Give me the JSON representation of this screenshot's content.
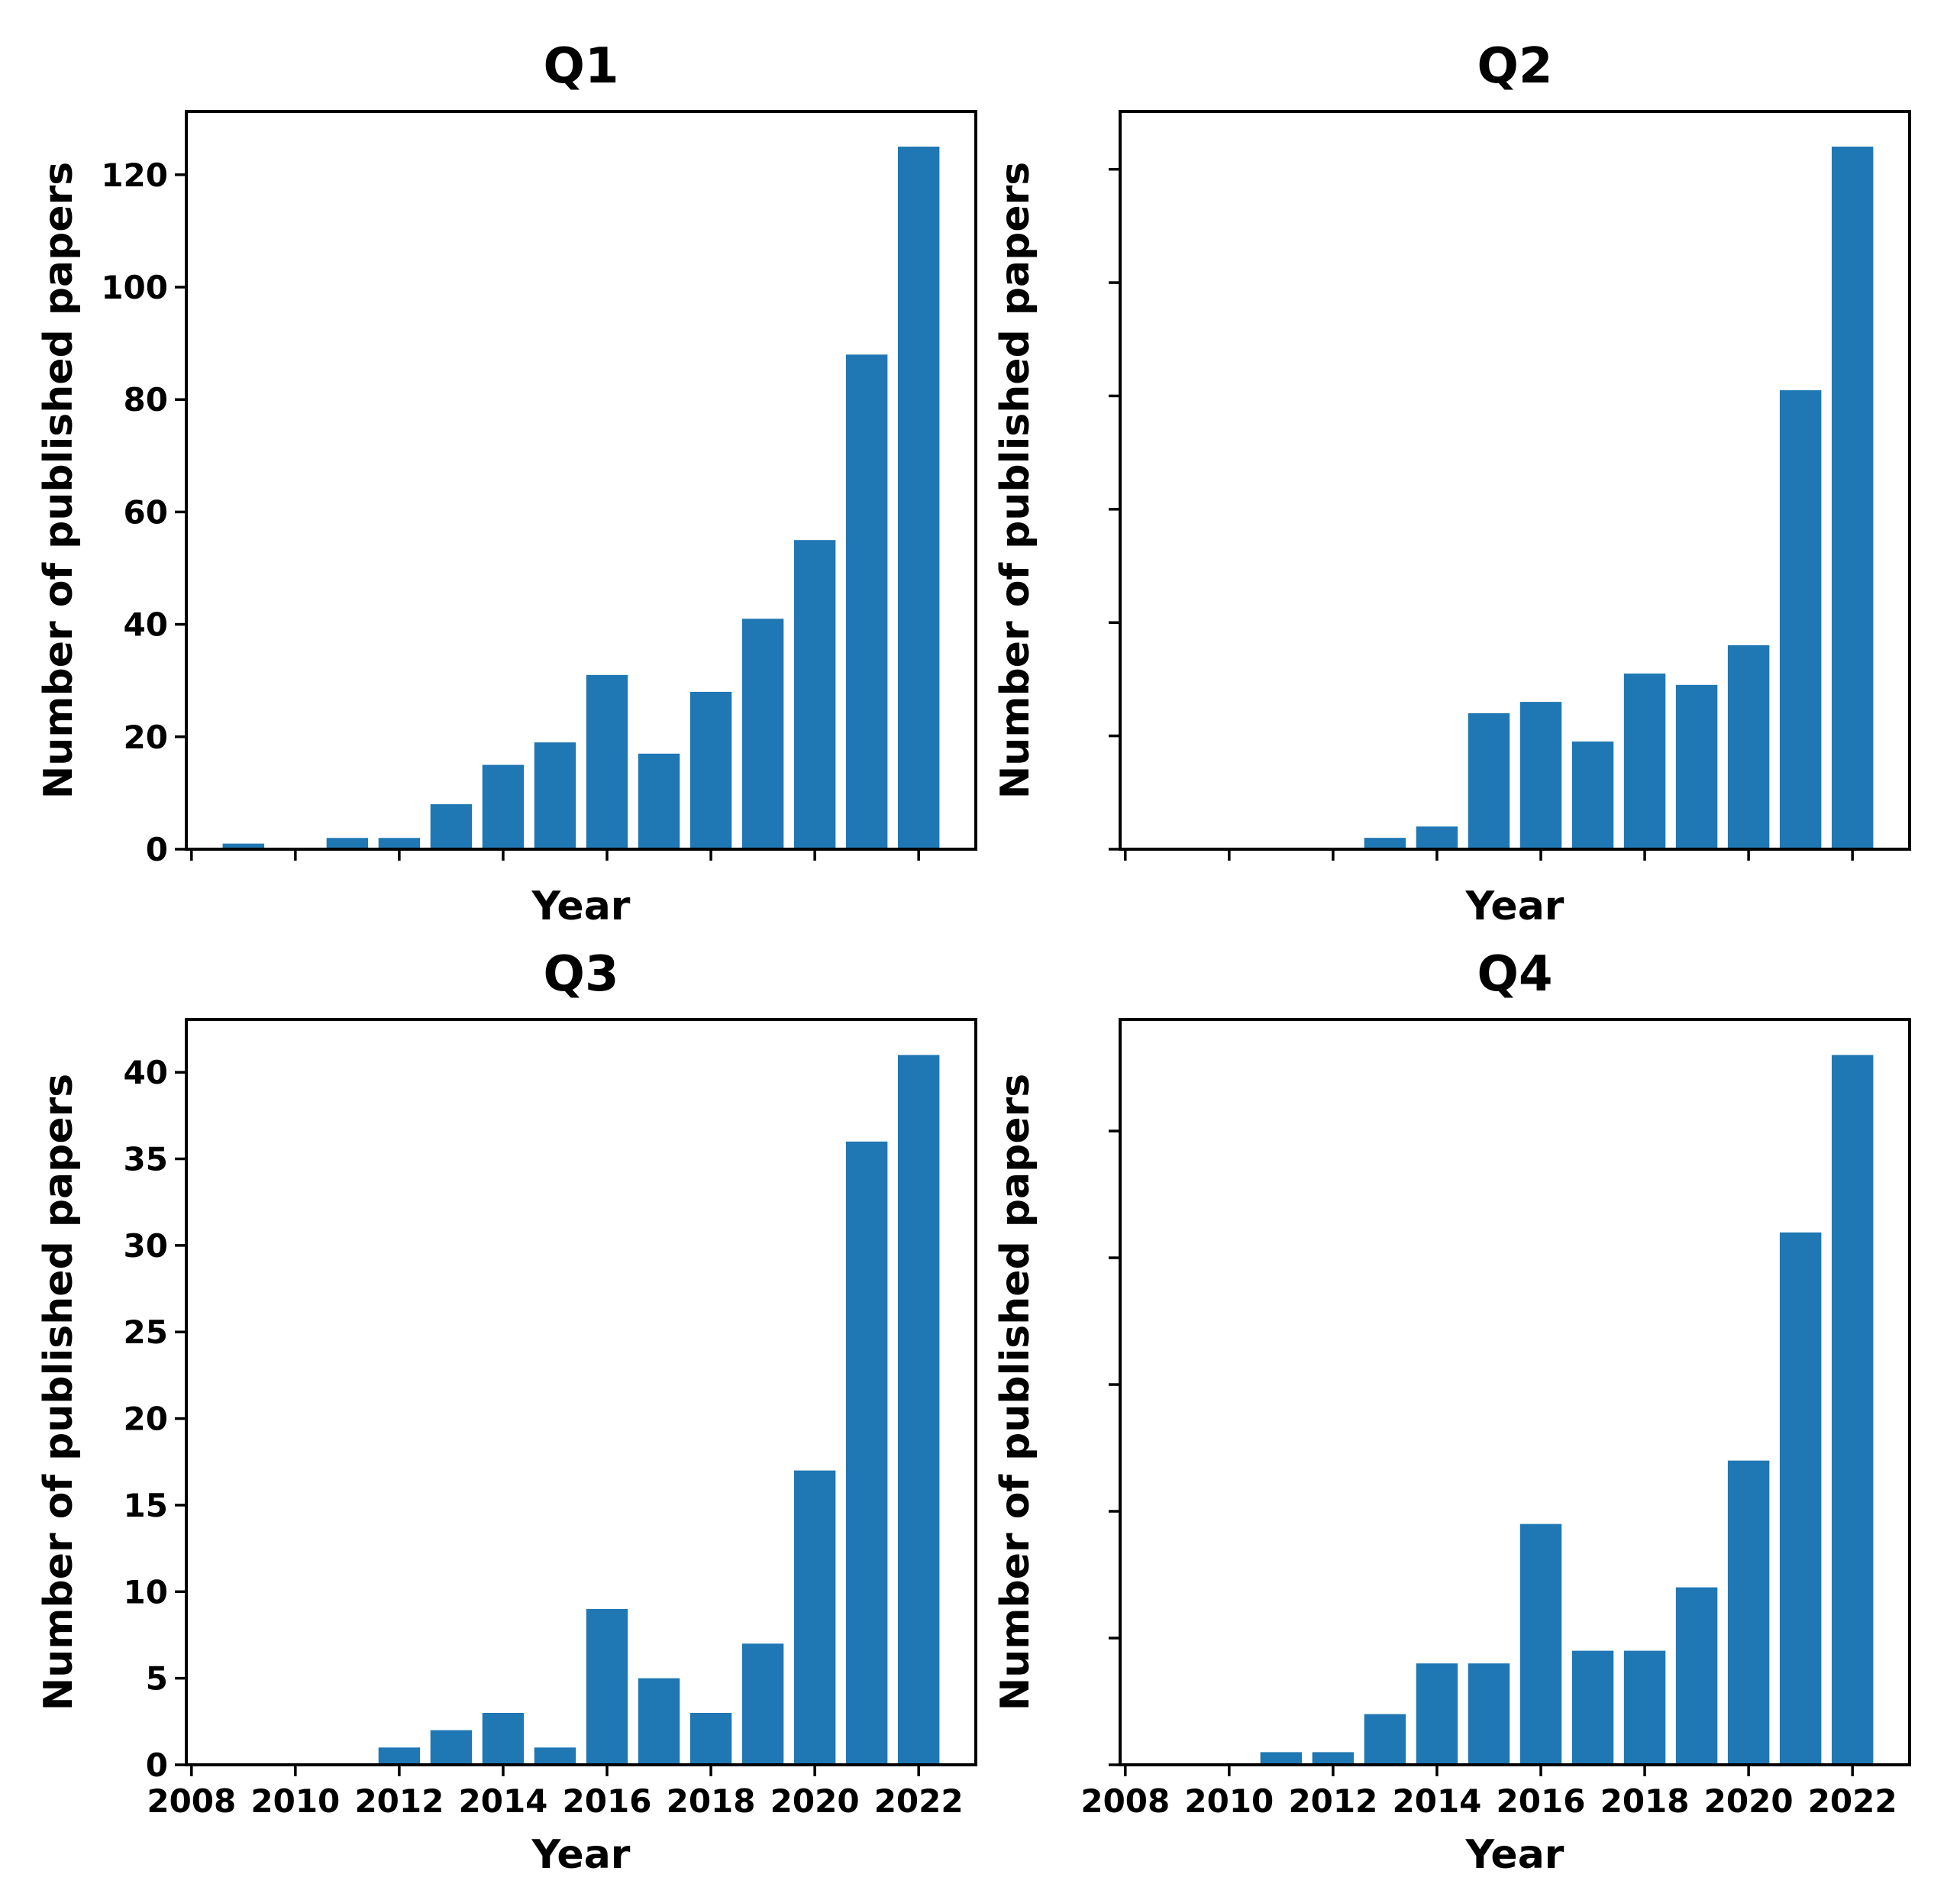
{
  "figure": {
    "background_color": "#ffffff",
    "bar_color": "#1f77b4",
    "axis_color": "#000000"
  },
  "chart_data": [
    {
      "id": "q1",
      "type": "bar",
      "title": "Q1",
      "xlabel": "Year",
      "ylabel": "Number of published papers",
      "years": [
        2009,
        2010,
        2011,
        2012,
        2013,
        2014,
        2015,
        2016,
        2017,
        2018,
        2019,
        2020,
        2021,
        2022
      ],
      "values": [
        1,
        0,
        2,
        2,
        8,
        15,
        19,
        31,
        17,
        28,
        41,
        55,
        88,
        125
      ],
      "xlim": [
        2007.9,
        2023.1
      ],
      "ylim": [
        0,
        131.25
      ],
      "xticks": [
        2008,
        2010,
        2012,
        2014,
        2016,
        2018,
        2020,
        2022
      ],
      "yticks": [
        0,
        20,
        40,
        60,
        80,
        100,
        120
      ],
      "xtick_labels": [
        "2008",
        "2010",
        "2012",
        "2014",
        "2016",
        "2018",
        "2020",
        "2022"
      ],
      "ytick_labels": [
        "0",
        "20",
        "40",
        "60",
        "80",
        "100",
        "120"
      ],
      "show_xtick_labels": false,
      "show_ytick_labels": true,
      "grid": false
    },
    {
      "id": "q2",
      "type": "bar",
      "title": "Q2",
      "xlabel": "Year",
      "ylabel": "Number of published papers",
      "years": [
        2013,
        2014,
        2015,
        2016,
        2017,
        2018,
        2019,
        2020,
        2021,
        2022
      ],
      "values": [
        2,
        4,
        24,
        26,
        19,
        31,
        29,
        36,
        81,
        124
      ],
      "xlim": [
        2007.9,
        2023.1
      ],
      "ylim": [
        0,
        130.2
      ],
      "xticks": [
        2008,
        2010,
        2012,
        2014,
        2016,
        2018,
        2020,
        2022
      ],
      "yticks": [
        0,
        20,
        40,
        60,
        80,
        100,
        120
      ],
      "xtick_labels": [
        "2008",
        "2010",
        "2012",
        "2014",
        "2016",
        "2018",
        "2020",
        "2022"
      ],
      "ytick_labels": [
        "",
        "",
        "",
        "",
        "",
        "",
        ""
      ],
      "show_xtick_labels": false,
      "show_ytick_labels": false,
      "grid": false
    },
    {
      "id": "q3",
      "type": "bar",
      "title": "Q3",
      "xlabel": "Year",
      "ylabel": "Number of published papers",
      "years": [
        2012,
        2013,
        2014,
        2015,
        2016,
        2017,
        2018,
        2019,
        2020,
        2021,
        2022
      ],
      "values": [
        1,
        2,
        3,
        1,
        9,
        5,
        3,
        7,
        17,
        36,
        41
      ],
      "xlim": [
        2007.9,
        2023.1
      ],
      "ylim": [
        0,
        43.05
      ],
      "xticks": [
        2008,
        2010,
        2012,
        2014,
        2016,
        2018,
        2020,
        2022
      ],
      "yticks": [
        0,
        5,
        10,
        15,
        20,
        25,
        30,
        35,
        40
      ],
      "xtick_labels": [
        "2008",
        "2010",
        "2012",
        "2014",
        "2016",
        "2018",
        "2020",
        "2022"
      ],
      "ytick_labels": [
        "0",
        "5",
        "10",
        "15",
        "20",
        "25",
        "30",
        "35",
        "40"
      ],
      "show_xtick_labels": true,
      "show_ytick_labels": true,
      "grid": false
    },
    {
      "id": "q4",
      "type": "bar",
      "title": "Q4",
      "xlabel": "Year",
      "ylabel": "Number of published papers",
      "years": [
        2011,
        2012,
        2013,
        2014,
        2015,
        2016,
        2017,
        2018,
        2019,
        2020,
        2021,
        2022
      ],
      "values": [
        1,
        1,
        4,
        8,
        8,
        19,
        9,
        9,
        14,
        24,
        42,
        56
      ],
      "xlim": [
        2007.9,
        2023.1
      ],
      "ylim": [
        0,
        58.8
      ],
      "xticks": [
        2008,
        2010,
        2012,
        2014,
        2016,
        2018,
        2020,
        2022
      ],
      "yticks": [
        0,
        10,
        20,
        30,
        40,
        50
      ],
      "xtick_labels": [
        "2008",
        "2010",
        "2012",
        "2014",
        "2016",
        "2018",
        "2020",
        "2022"
      ],
      "ytick_labels": [
        "",
        "",
        "",
        "",
        "",
        ""
      ],
      "show_xtick_labels": true,
      "show_ytick_labels": false,
      "grid": false
    }
  ]
}
